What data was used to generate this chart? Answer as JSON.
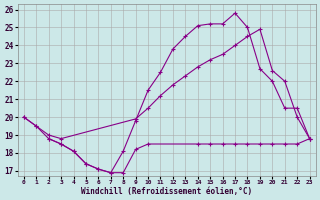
{
  "xlabel": "Windchill (Refroidissement éolien,°C)",
  "bg_color": "#cce8e8",
  "grid_color": "#aaaaaa",
  "line_color": "#880088",
  "xlim": [
    -0.5,
    23.5
  ],
  "ylim": [
    16.7,
    26.3
  ],
  "yticks": [
    17,
    18,
    19,
    20,
    21,
    22,
    23,
    24,
    25,
    26
  ],
  "xticks": [
    0,
    1,
    2,
    3,
    4,
    5,
    6,
    7,
    8,
    9,
    10,
    11,
    12,
    13,
    14,
    15,
    16,
    17,
    18,
    19,
    20,
    21,
    22,
    23
  ],
  "line1_x": [
    0,
    1,
    2,
    3,
    4,
    5,
    6,
    7,
    8,
    9,
    10,
    11,
    12,
    13,
    14,
    15,
    16,
    17,
    18,
    19,
    20,
    21,
    22,
    23
  ],
  "line1_y": [
    20.0,
    19.5,
    18.8,
    18.5,
    18.1,
    17.4,
    17.1,
    16.9,
    18.1,
    19.8,
    21.5,
    22.5,
    23.8,
    24.5,
    25.1,
    25.2,
    25.2,
    25.8,
    25.0,
    22.7,
    22.0,
    20.5,
    20.5,
    18.8
  ],
  "line2_x": [
    0,
    1,
    2,
    3,
    9,
    10,
    11,
    12,
    13,
    14,
    15,
    16,
    17,
    18,
    19,
    20,
    21,
    22,
    23
  ],
  "line2_y": [
    20.0,
    19.5,
    19.0,
    18.8,
    19.9,
    20.5,
    21.2,
    21.8,
    22.3,
    22.8,
    23.2,
    23.5,
    24.0,
    24.5,
    24.9,
    22.6,
    22.0,
    20.0,
    18.8
  ],
  "line3_x": [
    2,
    3,
    4,
    5,
    6,
    7,
    8,
    9,
    10,
    14,
    15,
    16,
    17,
    18,
    19,
    20,
    21,
    22,
    23
  ],
  "line3_y": [
    18.8,
    18.5,
    18.1,
    17.4,
    17.1,
    16.9,
    16.9,
    18.2,
    18.5,
    18.5,
    18.5,
    18.5,
    18.5,
    18.5,
    18.5,
    18.5,
    18.5,
    18.5,
    18.8
  ]
}
